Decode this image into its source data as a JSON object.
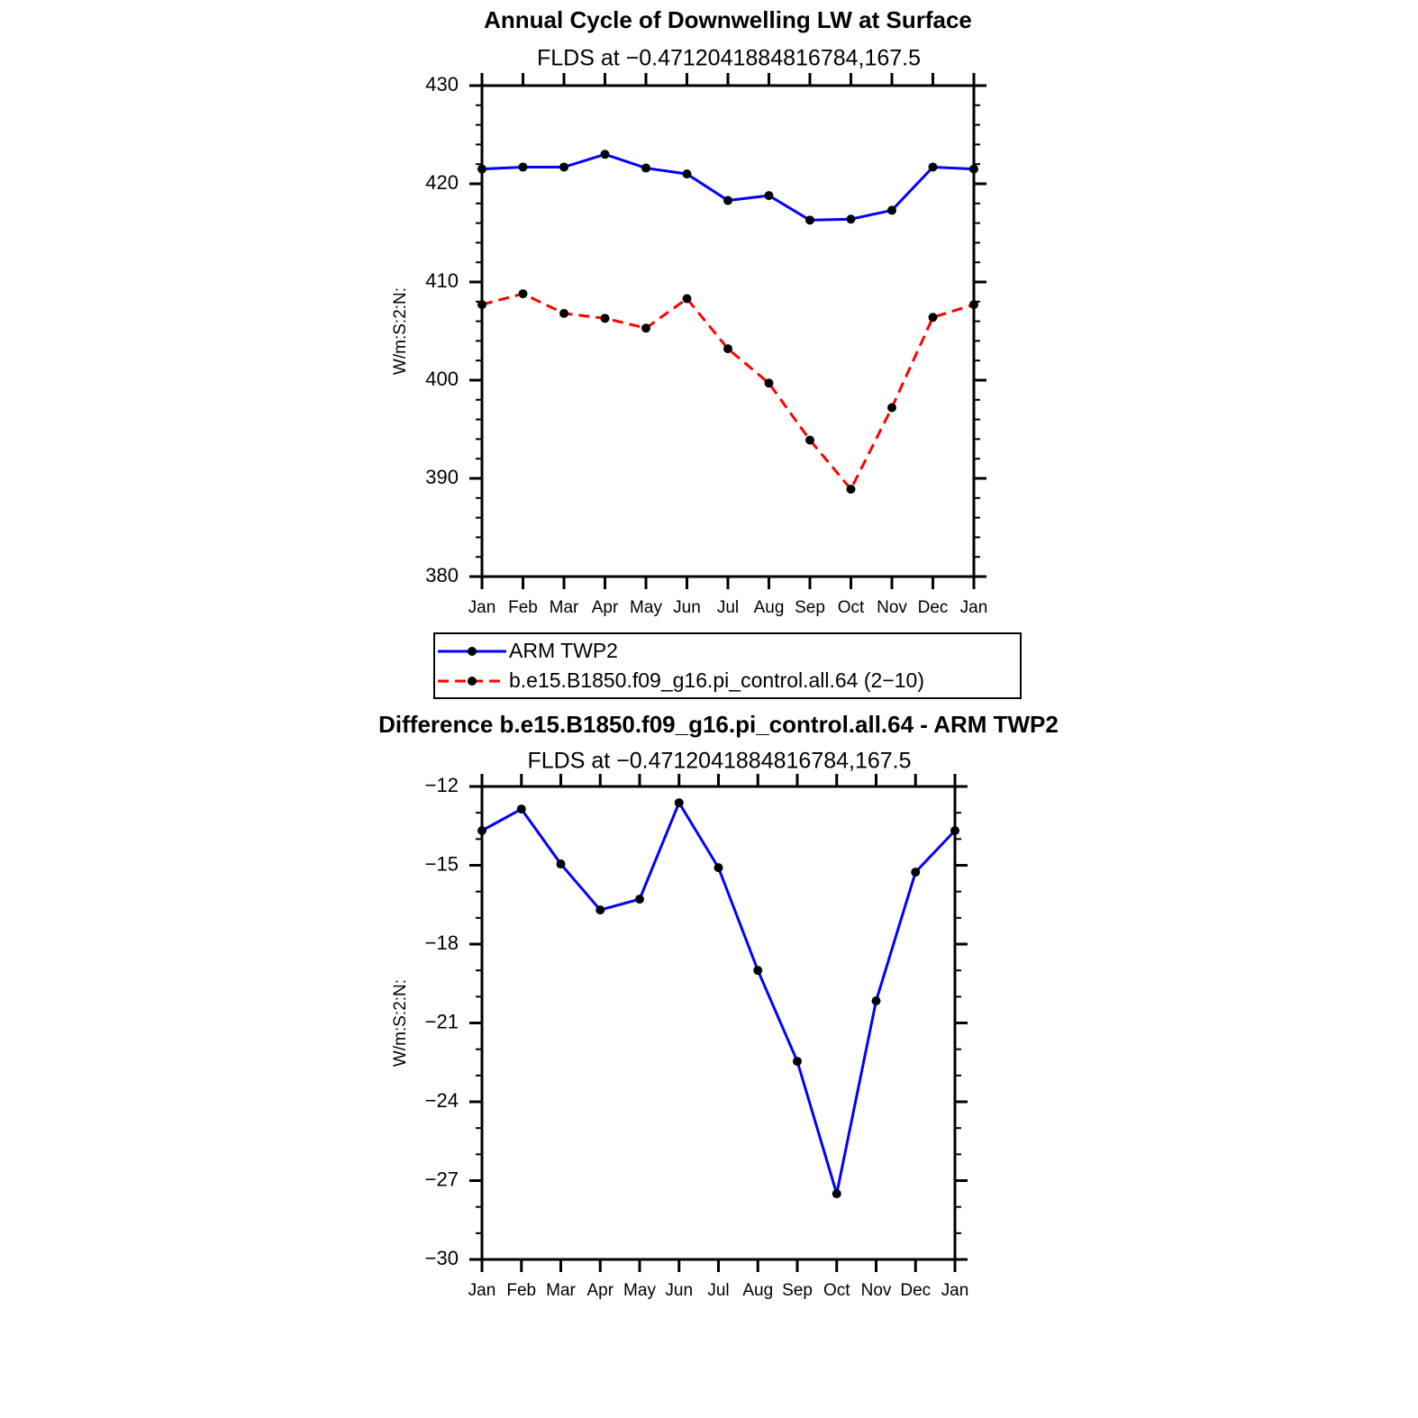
{
  "chart_data": [
    {
      "type": "line",
      "title": "Annual Cycle of Downwelling LW at Surface",
      "subtitle": "FLDS at −0.4712041884816784,167.5",
      "ylabel": "W/m:S:2:N:",
      "categories": [
        "Jan",
        "Feb",
        "Mar",
        "Apr",
        "May",
        "Jun",
        "Jul",
        "Aug",
        "Sep",
        "Oct",
        "Nov",
        "Dec",
        "Jan"
      ],
      "series": [
        {
          "name": "ARM TWP2",
          "color": "#0000ff",
          "dashed": false,
          "values": [
            421.5,
            421.7,
            421.7,
            423.0,
            421.6,
            421.0,
            418.3,
            418.8,
            416.3,
            416.4,
            417.3,
            421.7,
            421.5
          ]
        },
        {
          "name": "b.e15.B1850.f09_g16.pi_control.all.64 (2−10)",
          "color": "#ff0000",
          "dashed": true,
          "values": [
            407.7,
            408.8,
            406.8,
            406.3,
            405.3,
            408.3,
            403.2,
            399.7,
            393.9,
            388.9,
            397.2,
            406.4,
            407.7
          ]
        }
      ],
      "marker_color": "#000000",
      "ylim": [
        380,
        430
      ],
      "yticks": [
        380,
        390,
        400,
        410,
        420,
        430
      ],
      "legend": "bottom"
    },
    {
      "type": "line",
      "title": "Difference b.e15.B1850.f09_g16.pi_control.all.64 - ARM TWP2",
      "subtitle": "FLDS at −0.4712041884816784,167.5",
      "ylabel": "W/m:S:2:N:",
      "categories": [
        "Jan",
        "Feb",
        "Mar",
        "Apr",
        "May",
        "Jun",
        "Jul",
        "Aug",
        "Sep",
        "Oct",
        "Nov",
        "Dec",
        "Jan"
      ],
      "series": [
        {
          "color": "#0000ff",
          "dashed": false,
          "values": [
            -13.68,
            -12.86,
            -14.95,
            -16.7,
            -16.29,
            -12.62,
            -15.09,
            -19.0,
            -22.46,
            -27.5,
            -20.16,
            -15.26,
            -13.68
          ]
        }
      ],
      "marker_color": "#000000",
      "ylim": [
        -30,
        -12
      ],
      "yticks": [
        {
          "value": -30,
          "label": "−30"
        },
        {
          "value": -27,
          "label": "−27"
        },
        {
          "value": -24,
          "label": "−24"
        },
        {
          "value": -21,
          "label": "−21"
        },
        {
          "value": -18,
          "label": "−18"
        },
        {
          "value": -15,
          "label": "−15"
        },
        {
          "value": -12,
          "label": "−12"
        }
      ]
    }
  ]
}
